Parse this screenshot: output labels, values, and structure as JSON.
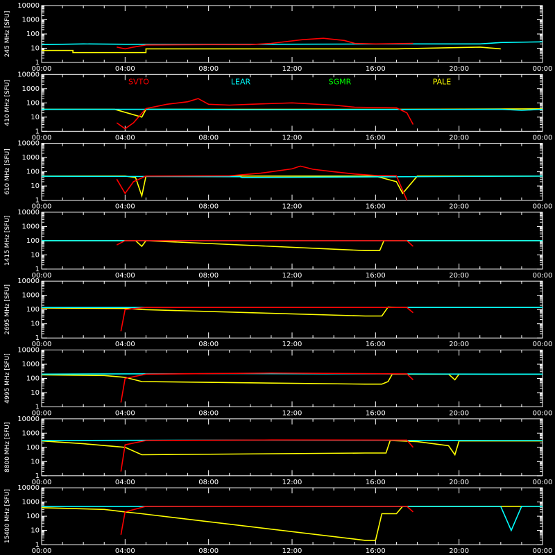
{
  "chart_data": {
    "type": "line",
    "x_tick_labels": [
      "00:00",
      "04:00",
      "08:00",
      "12:00",
      "16:00",
      "20:00",
      "00:00"
    ],
    "y_tick_labels": [
      "1",
      "10",
      "100",
      "1000",
      "10000"
    ],
    "x_range_hours": [
      0,
      24
    ],
    "y_range": [
      1,
      10000
    ],
    "y_scale": "log",
    "grid": false,
    "legend_placement": "top, inside second panel",
    "series": [
      {
        "name": "SVTO",
        "color": "#ff0000"
      },
      {
        "name": "LEAR",
        "color": "#00ffff"
      },
      {
        "name": "SGMR",
        "color": "#00ff00"
      },
      {
        "name": "PALE",
        "color": "#ffff00"
      }
    ],
    "panels": [
      {
        "ylabel": "245 MHz [SFU]",
        "segments": [
          {
            "s": "PALE",
            "pts": [
              [
                0,
                7
              ],
              [
                1.5,
                7
              ],
              [
                1.5,
                5
              ],
              [
                3.5,
                5
              ],
              [
                5,
                5
              ],
              [
                5,
                9
              ],
              [
                17,
                9
              ],
              [
                21,
                12
              ],
              [
                22,
                9
              ]
            ]
          },
          {
            "s": "LEAR",
            "pts": [
              [
                0,
                18
              ],
              [
                2,
                20
              ],
              [
                4,
                19
              ],
              [
                6,
                19
              ],
              [
                8,
                19
              ],
              [
                9.5,
                19
              ],
              [
                11,
                19
              ],
              [
                17.5,
                20
              ],
              [
                21,
                20
              ],
              [
                22,
                25
              ],
              [
                24,
                28
              ]
            ]
          },
          {
            "s": "SVTO",
            "pts": [
              [
                3.6,
                12
              ],
              [
                4,
                9
              ],
              [
                4.4,
                12
              ],
              [
                5,
                17
              ],
              [
                8,
                18
              ],
              [
                9.5,
                18
              ],
              [
                10,
                18
              ],
              [
                11,
                22
              ],
              [
                12.5,
                40
              ],
              [
                13.5,
                50
              ],
              [
                14.5,
                35
              ],
              [
                15,
                22
              ],
              [
                16,
                20
              ],
              [
                17.8,
                22
              ]
            ]
          }
        ]
      },
      {
        "ylabel": "410 MHz [SFU]",
        "segments": [
          {
            "s": "PALE",
            "pts": [
              [
                0,
                35
              ],
              [
                3.5,
                35
              ],
              [
                4.8,
                10
              ],
              [
                5,
                35
              ],
              [
                17,
                35
              ],
              [
                24,
                38
              ]
            ]
          },
          {
            "s": "LEAR",
            "pts": [
              [
                0,
                35
              ],
              [
                3.4,
                35
              ],
              [
                5,
                35
              ],
              [
                7,
                35
              ],
              [
                9.5,
                33
              ],
              [
                22,
                35
              ],
              [
                23,
                30
              ],
              [
                24,
                35
              ]
            ]
          },
          {
            "s": "SVTO",
            "pts": [
              [
                3.6,
                4
              ],
              [
                4,
                1.5
              ],
              [
                4.4,
                4
              ],
              [
                5,
                40
              ],
              [
                6,
                80
              ],
              [
                7,
                120
              ],
              [
                7.5,
                200
              ],
              [
                8,
                80
              ],
              [
                9,
                70
              ],
              [
                10,
                80
              ],
              [
                12,
                100
              ],
              [
                14,
                70
              ],
              [
                15,
                50
              ],
              [
                17,
                45
              ],
              [
                17.5,
                20
              ],
              [
                17.8,
                3
              ]
            ]
          }
        ]
      },
      {
        "ylabel": "610 MHz [SFU]",
        "segments": [
          {
            "s": "PALE",
            "pts": [
              [
                0,
                50
              ],
              [
                4,
                50
              ],
              [
                4.5,
                40
              ],
              [
                4.8,
                2
              ],
              [
                5,
                50
              ],
              [
                16,
                50
              ],
              [
                17,
                20
              ],
              [
                17.3,
                3
              ],
              [
                18,
                50
              ],
              [
                24,
                50
              ]
            ]
          },
          {
            "s": "LEAR",
            "pts": [
              [
                0,
                48
              ],
              [
                9.5,
                45
              ],
              [
                9.6,
                40
              ],
              [
                22,
                48
              ],
              [
                24,
                50
              ]
            ]
          },
          {
            "s": "SVTO",
            "pts": [
              [
                3.6,
                30
              ],
              [
                4,
                3
              ],
              [
                4.4,
                20
              ],
              [
                5,
                50
              ],
              [
                9,
                52
              ],
              [
                10.5,
                80
              ],
              [
                11,
                100
              ],
              [
                12,
                160
              ],
              [
                12.4,
                250
              ],
              [
                13,
                150
              ],
              [
                14,
                100
              ],
              [
                15,
                70
              ],
              [
                16,
                55
              ],
              [
                17,
                52
              ],
              [
                17.5,
                1
              ]
            ]
          }
        ]
      },
      {
        "ylabel": "1415 MHz [SFU]",
        "segments": [
          {
            "s": "PALE",
            "pts": [
              [
                0,
                100
              ],
              [
                3.5,
                100
              ],
              [
                4.5,
                100
              ],
              [
                4.8,
                40
              ],
              [
                5,
                100
              ],
              [
                15.5,
                20
              ],
              [
                16.2,
                20
              ],
              [
                16.4,
                100
              ],
              [
                24,
                100
              ]
            ]
          },
          {
            "s": "LEAR",
            "pts": [
              [
                0,
                100
              ],
              [
                9.5,
                100
              ],
              [
                22,
                100
              ],
              [
                24,
                100
              ]
            ]
          },
          {
            "s": "SVTO",
            "pts": [
              [
                3.6,
                50
              ],
              [
                4,
                100
              ],
              [
                10,
                100
              ],
              [
                11,
                100
              ],
              [
                17.5,
                100
              ],
              [
                17.8,
                40
              ]
            ]
          }
        ]
      },
      {
        "ylabel": "2695 MHz [SFU]",
        "segments": [
          {
            "s": "PALE",
            "pts": [
              [
                0,
                130
              ],
              [
                4,
                120
              ],
              [
                4.8,
                100
              ],
              [
                15.5,
                35
              ],
              [
                16.3,
                35
              ],
              [
                16.6,
                150
              ],
              [
                17,
                140
              ],
              [
                24,
                140
              ]
            ]
          },
          {
            "s": "LEAR",
            "pts": [
              [
                0,
                140
              ],
              [
                9.5,
                140
              ],
              [
                22,
                140
              ],
              [
                24,
                140
              ]
            ]
          },
          {
            "s": "SVTO",
            "pts": [
              [
                3.8,
                3
              ],
              [
                4,
                100
              ],
              [
                5,
                140
              ],
              [
                11,
                140
              ],
              [
                17.5,
                140
              ],
              [
                17.8,
                60
              ]
            ]
          }
        ]
      },
      {
        "ylabel": "4995 MHz [SFU]",
        "segments": [
          {
            "s": "PALE",
            "pts": [
              [
                0,
                180
              ],
              [
                3,
                160
              ],
              [
                4,
                120
              ],
              [
                4.8,
                60
              ],
              [
                15.5,
                40
              ],
              [
                16.3,
                40
              ],
              [
                16.6,
                60
              ],
              [
                16.8,
                200
              ],
              [
                19.5,
                200
              ],
              [
                19.8,
                80
              ],
              [
                20,
                200
              ],
              [
                24,
                200
              ]
            ]
          },
          {
            "s": "LEAR",
            "pts": [
              [
                0,
                200
              ],
              [
                9.5,
                220
              ],
              [
                22,
                200
              ],
              [
                24,
                200
              ]
            ]
          },
          {
            "s": "SVTO",
            "pts": [
              [
                3.8,
                2
              ],
              [
                4,
                100
              ],
              [
                5,
                200
              ],
              [
                11,
                240
              ],
              [
                17.5,
                210
              ],
              [
                17.8,
                80
              ]
            ]
          }
        ]
      },
      {
        "ylabel": "8800 MHz [SFU]",
        "segments": [
          {
            "s": "PALE",
            "pts": [
              [
                0,
                280
              ],
              [
                2,
                180
              ],
              [
                4,
                100
              ],
              [
                4.8,
                30
              ],
              [
                15.5,
                40
              ],
              [
                16.5,
                40
              ],
              [
                16.7,
                300
              ],
              [
                18,
                250
              ],
              [
                19.5,
                130
              ],
              [
                19.8,
                30
              ],
              [
                20,
                280
              ],
              [
                24,
                280
              ]
            ]
          },
          {
            "s": "LEAR",
            "pts": [
              [
                0,
                300
              ],
              [
                9.5,
                320
              ],
              [
                22,
                300
              ],
              [
                24,
                300
              ]
            ]
          },
          {
            "s": "SVTO",
            "pts": [
              [
                3.8,
                2
              ],
              [
                4,
                150
              ],
              [
                5,
                300
              ],
              [
                11,
                330
              ],
              [
                17.5,
                320
              ],
              [
                17.8,
                100
              ]
            ]
          }
        ]
      },
      {
        "ylabel": "15400 MHz [SFU]",
        "segments": [
          {
            "s": "PALE",
            "pts": [
              [
                0,
                400
              ],
              [
                3,
                300
              ],
              [
                4,
                200
              ],
              [
                4.8,
                150
              ],
              [
                15.5,
                2
              ],
              [
                16,
                2
              ],
              [
                16.3,
                150
              ],
              [
                17,
                150
              ],
              [
                17.3,
                500
              ],
              [
                24,
                500
              ]
            ]
          },
          {
            "s": "LEAR",
            "pts": [
              [
                0,
                480
              ],
              [
                9.5,
                500
              ],
              [
                22,
                480
              ],
              [
                22.5,
                10
              ],
              [
                23,
                500
              ],
              [
                24,
                500
              ]
            ]
          },
          {
            "s": "SVTO",
            "pts": [
              [
                3.8,
                5
              ],
              [
                4,
                200
              ],
              [
                5,
                500
              ],
              [
                11,
                500
              ],
              [
                17.5,
                500
              ],
              [
                17.8,
                200
              ]
            ]
          }
        ]
      }
    ]
  }
}
